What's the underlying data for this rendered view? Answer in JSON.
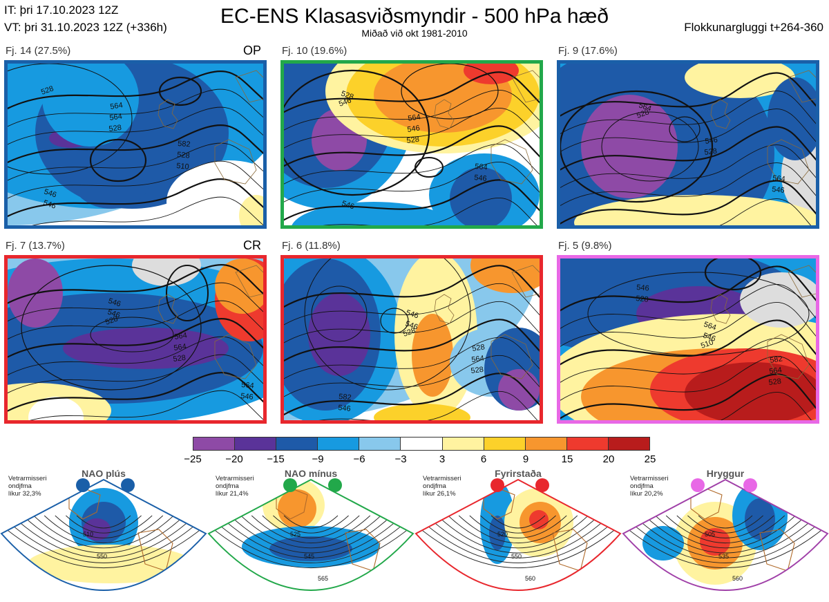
{
  "header": {
    "it_line": "IT: þri 17.10.2023 12Z",
    "vt_line": "VT: þri 31.10.2023 12Z  (+336h)",
    "title": "EC-ENS Klasasviðsmyndir - 500 hPa hæð",
    "subtitle": "Miðað við okt 1981-2010",
    "window_label": "Flokkunargluggi t+264-360"
  },
  "panels": [
    {
      "label": "Fj. 14 (27.5%)",
      "tag": "OP",
      "border_color": "#1a5fa8",
      "contour_labels": [
        "528",
        "528",
        "510",
        "546",
        "564",
        "528",
        "546",
        "564",
        "582"
      ]
    },
    {
      "label": "Fj. 10 (19.6%)",
      "tag": "",
      "border_color": "#22a84a",
      "contour_labels": [
        "546",
        "528",
        "546",
        "528",
        "546",
        "564",
        "546",
        "564"
      ]
    },
    {
      "label": "Fj. 9 (17.6%)",
      "tag": "",
      "border_color": "#1a5fa8",
      "contour_labels": [
        "528",
        "528",
        "546",
        "564",
        "546",
        "564"
      ]
    },
    {
      "label": "Fj. 7 (13.7%)",
      "tag": "CR",
      "border_color": "#e8272d",
      "contour_labels": [
        "528",
        "528",
        "546",
        "546",
        "564",
        "564",
        "546",
        "564"
      ]
    },
    {
      "label": "Fj. 6 (11.8%)",
      "tag": "",
      "border_color": "#e8272d",
      "contour_labels": [
        "528",
        "528",
        "546",
        "546",
        "564",
        "582",
        "546",
        "528"
      ]
    },
    {
      "label": "Fj. 5 (9.8%)",
      "tag": "",
      "border_color": "#e868e6",
      "contour_labels": [
        "510",
        "528",
        "528",
        "546",
        "564",
        "546",
        "564",
        "582"
      ]
    }
  ],
  "colorbar": {
    "colors": [
      "#8e4aa6",
      "#5a3399",
      "#1e5aa8",
      "#179ae0",
      "#88c8ec",
      "#ffffff",
      "#fff3a0",
      "#fcd12a",
      "#f7962e",
      "#ee3a2e",
      "#b81c1c"
    ],
    "ticks": [
      "−25",
      "−20",
      "−15",
      "−9",
      "−6",
      "−3",
      "3",
      "6",
      "9",
      "15",
      "20",
      "25"
    ]
  },
  "regimes": [
    {
      "title": "NAO plús",
      "info": [
        "Vetrarmisseri",
        "ondjfma",
        "líkur 32,3%"
      ],
      "color": "#1a5fa8",
      "labels": [
        "510",
        "550"
      ]
    },
    {
      "title": "NAO mínus",
      "info": [
        "Vetrarmisseri",
        "ondjfma",
        "líkur 21,4%"
      ],
      "color": "#22a84a",
      "labels": [
        "525",
        "545",
        "565"
      ]
    },
    {
      "title": "Fyrirstaða",
      "info": [
        "Vetrarmisseri",
        "ondjfma",
        "líkur 26,1%"
      ],
      "color": "#e8272d",
      "labels": [
        "520",
        "550",
        "560"
      ]
    },
    {
      "title": "Hryggur",
      "info": [
        "Vetrarmisseri",
        "ondjfma",
        "líkur 20,2%"
      ],
      "color": "#a040a8",
      "labels": [
        "505",
        "535",
        "560"
      ]
    }
  ]
}
